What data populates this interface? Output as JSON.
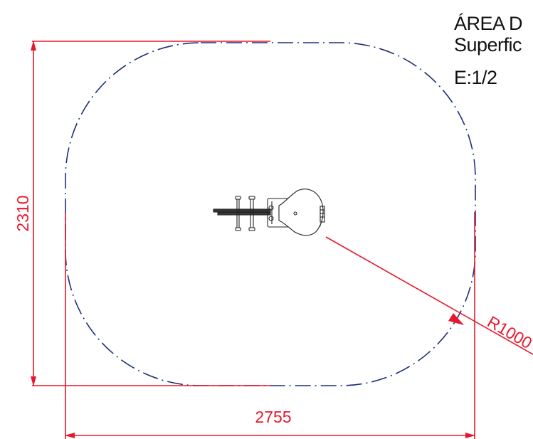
{
  "title": {
    "line1": "ÁREA D",
    "line2": "Superfic",
    "scale": "E:1/2"
  },
  "dimensions": {
    "width_label": "2755",
    "height_label": "2310",
    "radius_label": "R1000"
  },
  "colors": {
    "dimension": "#e8182c",
    "safety_outline": "#1f2f7a",
    "equipment": "#222222",
    "text": "#111111"
  }
}
